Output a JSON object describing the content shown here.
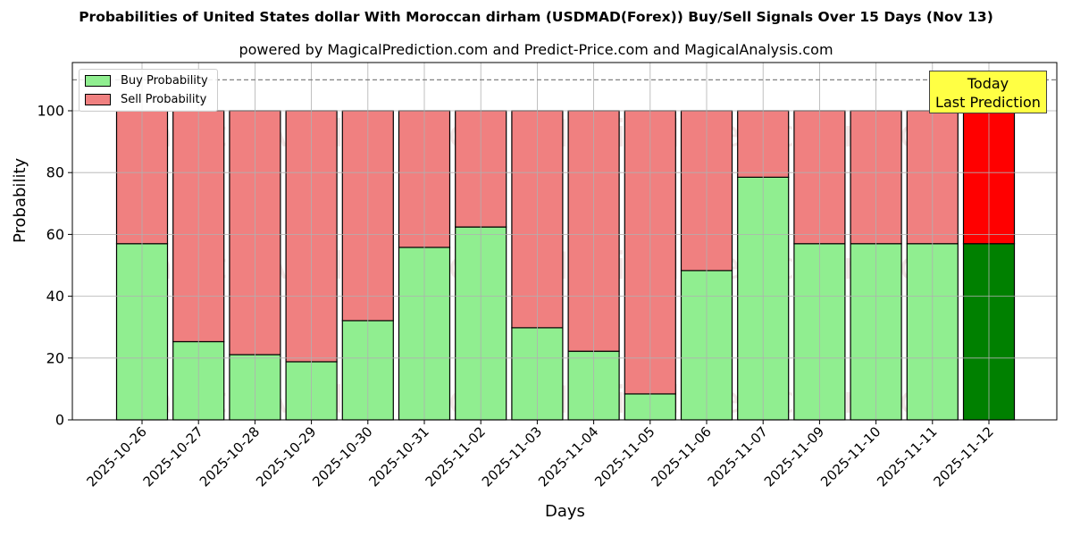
{
  "chart_data": {
    "type": "bar",
    "stacked": true,
    "title": "Probabilities of United States dollar With Moroccan dirham (USDMAD(Forex)) Buy/Sell Signals Over 15 Days (Nov 13)",
    "subtitle": "powered by MagicalPrediction.com and Predict-Price.com and MagicalAnalysis.com",
    "xlabel": "Days",
    "ylabel": "Probability",
    "ylim": [
      0,
      115
    ],
    "yticks": [
      0,
      20,
      40,
      60,
      80,
      100
    ],
    "grid": true,
    "legend_position": "upper left",
    "reference_line": {
      "y": 110,
      "style": "dashed",
      "color": "#808080"
    },
    "categories": [
      "2025-10-26",
      "2025-10-27",
      "2025-10-28",
      "2025-10-29",
      "2025-10-30",
      "2025-10-31",
      "2025-11-02",
      "2025-11-03",
      "2025-11-04",
      "2025-11-05",
      "2025-11-06",
      "2025-11-07",
      "2025-11-09",
      "2025-11-10",
      "2025-11-11",
      "2025-11-12"
    ],
    "series": [
      {
        "name": "Buy Probability",
        "color": "#90ee90",
        "highlight_color": "#008000",
        "values": [
          57.0,
          25.3,
          21.1,
          18.8,
          32.1,
          55.8,
          62.4,
          29.8,
          22.2,
          8.4,
          48.3,
          78.5,
          57.0,
          57.0,
          57.0,
          57.0
        ]
      },
      {
        "name": "Sell Probability",
        "color": "#f08080",
        "highlight_color": "#ff0000",
        "values": [
          43.0,
          74.7,
          78.9,
          81.2,
          67.9,
          44.2,
          37.6,
          70.2,
          77.8,
          91.6,
          51.7,
          21.5,
          43.0,
          43.0,
          43.0,
          43.0
        ]
      }
    ],
    "highlight_index": 15,
    "annotation": {
      "text_line1": "Today",
      "text_line2": "Last Prediction",
      "background": "#ffff44"
    },
    "watermarks": [
      "MagicalAnalysis.com",
      "MagicalPrediction.com"
    ]
  },
  "legend": {
    "buy": "Buy Probability",
    "sell": "Sell Probability"
  }
}
